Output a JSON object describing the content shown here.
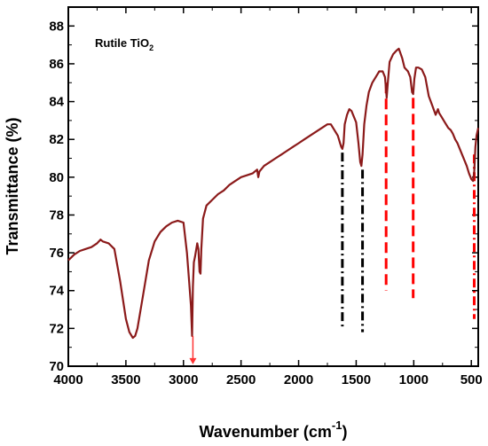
{
  "chart_data": {
    "type": "line",
    "annotation": {
      "main": "Rutile TiO",
      "sub": "2"
    },
    "xlabel": {
      "main": "Wavenumber (cm",
      "sup": "-1",
      "close": ")"
    },
    "ylabel": "Transmittance (%)",
    "xlim": [
      4000,
      440
    ],
    "ylim": [
      70,
      89
    ],
    "x_reversed": true,
    "x_ticks": [
      4000,
      3500,
      3000,
      2500,
      2000,
      1500,
      1000,
      500
    ],
    "y_ticks": [
      70,
      72,
      74,
      76,
      78,
      80,
      82,
      84,
      86,
      88
    ],
    "grid": false,
    "line_color": "#8b1a1a",
    "series": [
      {
        "x": [
          4000,
          3950,
          3900,
          3850,
          3800,
          3750,
          3720,
          3700,
          3650,
          3600,
          3550,
          3500,
          3470,
          3440,
          3420,
          3400,
          3350,
          3300,
          3250,
          3200,
          3150,
          3100,
          3050,
          3000,
          2970,
          2950,
          2935,
          2925,
          2918,
          2910,
          2900,
          2880,
          2870,
          2860,
          2852,
          2845,
          2830,
          2800,
          2750,
          2700,
          2650,
          2600,
          2550,
          2500,
          2450,
          2400,
          2360,
          2350,
          2340,
          2300,
          2250,
          2200,
          2150,
          2100,
          2050,
          2000,
          1950,
          1900,
          1850,
          1800,
          1750,
          1720,
          1700,
          1680,
          1660,
          1640,
          1630,
          1620,
          1610,
          1600,
          1580,
          1560,
          1540,
          1520,
          1500,
          1480,
          1465,
          1455,
          1445,
          1430,
          1410,
          1390,
          1360,
          1330,
          1300,
          1270,
          1250,
          1235,
          1225,
          1210,
          1180,
          1150,
          1130,
          1100,
          1080,
          1050,
          1030,
          1015,
          1005,
          995,
          980,
          960,
          930,
          900,
          870,
          840,
          810,
          790,
          780,
          760,
          740,
          720,
          700,
          680,
          660,
          640,
          620,
          600,
          580,
          560,
          540,
          520,
          500,
          485,
          475,
          465,
          455,
          440
        ],
        "y": [
          75.6,
          75.9,
          76.1,
          76.2,
          76.3,
          76.5,
          76.7,
          76.6,
          76.5,
          76.2,
          74.5,
          72.5,
          71.8,
          71.5,
          71.6,
          72.0,
          73.8,
          75.6,
          76.6,
          77.1,
          77.4,
          77.6,
          77.7,
          77.6,
          76.0,
          74.4,
          73.2,
          71.6,
          74.2,
          75.5,
          75.8,
          76.5,
          76.2,
          75.0,
          74.9,
          76.2,
          77.8,
          78.5,
          78.8,
          79.1,
          79.3,
          79.6,
          79.8,
          80.0,
          80.1,
          80.2,
          80.4,
          80.0,
          80.3,
          80.6,
          80.8,
          81.0,
          81.2,
          81.4,
          81.6,
          81.8,
          82.0,
          82.2,
          82.4,
          82.6,
          82.8,
          82.8,
          82.6,
          82.4,
          82.2,
          81.8,
          81.6,
          81.5,
          81.8,
          82.8,
          83.3,
          83.6,
          83.5,
          83.2,
          82.9,
          81.8,
          80.8,
          80.6,
          81.2,
          82.8,
          83.8,
          84.5,
          85.0,
          85.3,
          85.6,
          85.6,
          85.3,
          84.2,
          85.0,
          86.1,
          86.5,
          86.7,
          86.8,
          86.3,
          85.8,
          85.6,
          85.3,
          84.5,
          84.4,
          85.2,
          85.8,
          85.8,
          85.7,
          85.3,
          84.3,
          83.8,
          83.3,
          83.6,
          83.4,
          83.2,
          83.0,
          82.8,
          82.6,
          82.5,
          82.3,
          82.0,
          81.8,
          81.5,
          81.2,
          80.9,
          80.6,
          80.2,
          79.9,
          79.8,
          80.3,
          81.6,
          82.2,
          82.6
        ]
      }
    ],
    "markers": [
      {
        "x": 1620,
        "y_top": 81.3,
        "y_bottom": 72.0,
        "color": "#000000",
        "style": "dashdot"
      },
      {
        "x": 1445,
        "y_top": 80.4,
        "y_bottom": 71.8,
        "color": "#000000",
        "style": "dashdot"
      },
      {
        "x": 1240,
        "y_top": 85.0,
        "y_bottom": 74.0,
        "color": "#ff0000",
        "style": "dash"
      },
      {
        "x": 1005,
        "y_top": 84.2,
        "y_bottom": 73.6,
        "color": "#ff0000",
        "style": "dash"
      },
      {
        "x": 475,
        "y_top": 81.2,
        "y_bottom": 72.5,
        "color": "#ff0000",
        "style": "dashdot"
      }
    ],
    "arrow": {
      "x": 2918,
      "y_from": 71.6,
      "y_to": 70.1,
      "color": "#ff3333"
    }
  }
}
